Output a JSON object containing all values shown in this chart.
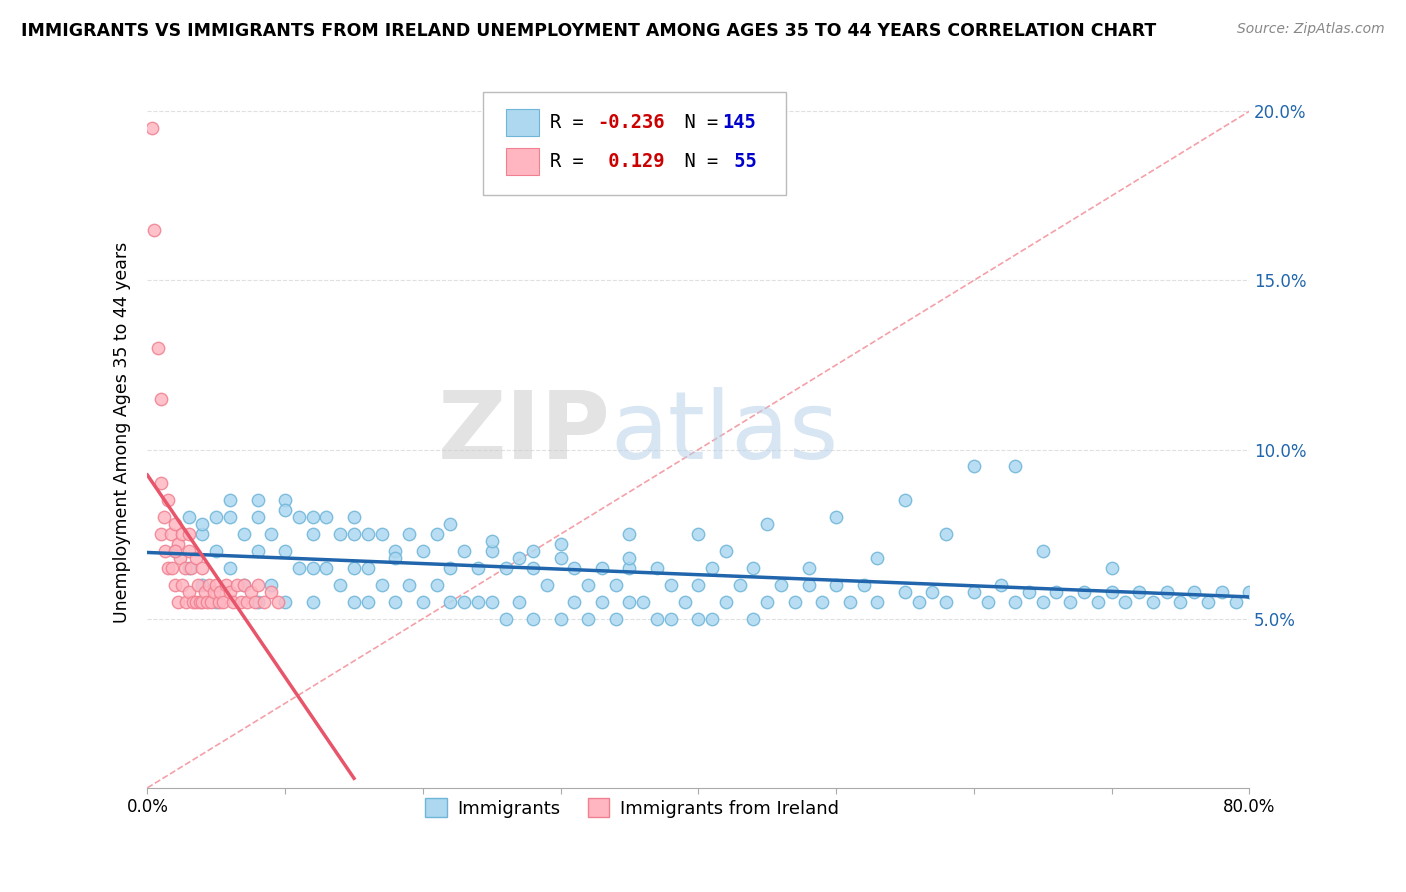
{
  "title": "IMMIGRANTS VS IMMIGRANTS FROM IRELAND UNEMPLOYMENT AMONG AGES 35 TO 44 YEARS CORRELATION CHART",
  "source": "Source: ZipAtlas.com",
  "ylabel": "Unemployment Among Ages 35 to 44 years",
  "xlim": [
    0.0,
    0.8
  ],
  "ylim": [
    0.0,
    0.21
  ],
  "xticks": [
    0.0,
    0.1,
    0.2,
    0.3,
    0.4,
    0.5,
    0.6,
    0.7,
    0.8
  ],
  "xticklabels": [
    "0.0%",
    "",
    "",
    "",
    "",
    "",
    "",
    "",
    "80.0%"
  ],
  "yticks_right": [
    0.0,
    0.05,
    0.1,
    0.15,
    0.2
  ],
  "ytick_right_labels": [
    "",
    "5.0%",
    "10.0%",
    "15.0%",
    "20.0%"
  ],
  "blue_face_color": "#ADD8F0",
  "blue_edge_color": "#6EB5D8",
  "pink_face_color": "#FFB6C1",
  "pink_edge_color": "#F08090",
  "blue_line_color": "#2166AC",
  "pink_line_color": "#E8556A",
  "diag_line_color": "#F4A0A8",
  "R_blue": -0.236,
  "N_blue": 145,
  "R_pink": 0.129,
  "N_pink": 55,
  "watermark_zip": "ZIP",
  "watermark_atlas": "atlas",
  "legend_R_color_blue": "#CC0000",
  "legend_N_color_blue": "#0000CC",
  "legend_R_color_pink": "#CC0000",
  "legend_N_color_pink": "#0000CC",
  "blue_scatter_x": [
    0.02,
    0.03,
    0.03,
    0.04,
    0.04,
    0.05,
    0.05,
    0.05,
    0.06,
    0.06,
    0.07,
    0.07,
    0.08,
    0.08,
    0.08,
    0.09,
    0.09,
    0.1,
    0.1,
    0.1,
    0.11,
    0.11,
    0.12,
    0.12,
    0.12,
    0.13,
    0.13,
    0.14,
    0.14,
    0.15,
    0.15,
    0.15,
    0.16,
    0.16,
    0.16,
    0.17,
    0.17,
    0.18,
    0.18,
    0.19,
    0.19,
    0.2,
    0.2,
    0.21,
    0.21,
    0.22,
    0.22,
    0.23,
    0.23,
    0.24,
    0.24,
    0.25,
    0.25,
    0.26,
    0.26,
    0.27,
    0.27,
    0.28,
    0.28,
    0.29,
    0.3,
    0.3,
    0.31,
    0.31,
    0.32,
    0.32,
    0.33,
    0.33,
    0.34,
    0.34,
    0.35,
    0.35,
    0.36,
    0.37,
    0.37,
    0.38,
    0.38,
    0.39,
    0.4,
    0.4,
    0.41,
    0.41,
    0.42,
    0.43,
    0.44,
    0.44,
    0.45,
    0.46,
    0.47,
    0.48,
    0.49,
    0.5,
    0.51,
    0.52,
    0.53,
    0.55,
    0.56,
    0.57,
    0.58,
    0.6,
    0.61,
    0.62,
    0.63,
    0.64,
    0.65,
    0.66,
    0.67,
    0.68,
    0.69,
    0.7,
    0.71,
    0.72,
    0.73,
    0.74,
    0.75,
    0.76,
    0.77,
    0.78,
    0.79,
    0.8,
    0.6,
    0.63,
    0.55,
    0.5,
    0.45,
    0.4,
    0.35,
    0.28,
    0.22,
    0.58,
    0.65,
    0.7,
    0.3,
    0.48,
    0.35,
    0.53,
    0.42,
    0.25,
    0.18,
    0.15,
    0.12,
    0.1,
    0.08,
    0.06,
    0.04
  ],
  "blue_scatter_y": [
    0.07,
    0.08,
    0.065,
    0.075,
    0.06,
    0.08,
    0.07,
    0.055,
    0.085,
    0.065,
    0.075,
    0.06,
    0.08,
    0.07,
    0.055,
    0.075,
    0.06,
    0.085,
    0.07,
    0.055,
    0.08,
    0.065,
    0.075,
    0.065,
    0.055,
    0.08,
    0.065,
    0.075,
    0.06,
    0.08,
    0.065,
    0.055,
    0.075,
    0.065,
    0.055,
    0.075,
    0.06,
    0.07,
    0.055,
    0.075,
    0.06,
    0.07,
    0.055,
    0.075,
    0.06,
    0.065,
    0.055,
    0.07,
    0.055,
    0.065,
    0.055,
    0.07,
    0.055,
    0.065,
    0.05,
    0.068,
    0.055,
    0.065,
    0.05,
    0.06,
    0.068,
    0.05,
    0.065,
    0.055,
    0.06,
    0.05,
    0.065,
    0.055,
    0.06,
    0.05,
    0.065,
    0.055,
    0.055,
    0.065,
    0.05,
    0.06,
    0.05,
    0.055,
    0.06,
    0.05,
    0.065,
    0.05,
    0.055,
    0.06,
    0.065,
    0.05,
    0.055,
    0.06,
    0.055,
    0.06,
    0.055,
    0.06,
    0.055,
    0.06,
    0.055,
    0.058,
    0.055,
    0.058,
    0.055,
    0.058,
    0.055,
    0.06,
    0.055,
    0.058,
    0.055,
    0.058,
    0.055,
    0.058,
    0.055,
    0.058,
    0.055,
    0.058,
    0.055,
    0.058,
    0.055,
    0.058,
    0.055,
    0.058,
    0.055,
    0.058,
    0.095,
    0.095,
    0.085,
    0.08,
    0.078,
    0.075,
    0.068,
    0.07,
    0.078,
    0.075,
    0.07,
    0.065,
    0.072,
    0.065,
    0.075,
    0.068,
    0.07,
    0.073,
    0.068,
    0.075,
    0.08,
    0.082,
    0.085,
    0.08,
    0.078
  ],
  "pink_scatter_x": [
    0.003,
    0.005,
    0.008,
    0.01,
    0.01,
    0.012,
    0.013,
    0.015,
    0.015,
    0.017,
    0.018,
    0.02,
    0.02,
    0.022,
    0.022,
    0.024,
    0.025,
    0.025,
    0.027,
    0.028,
    0.03,
    0.03,
    0.032,
    0.033,
    0.035,
    0.035,
    0.037,
    0.038,
    0.04,
    0.04,
    0.042,
    0.043,
    0.045,
    0.046,
    0.048,
    0.05,
    0.052,
    0.053,
    0.055,
    0.057,
    0.06,
    0.062,
    0.065,
    0.068,
    0.07,
    0.072,
    0.075,
    0.078,
    0.08,
    0.085,
    0.09,
    0.095,
    0.01,
    0.02,
    0.03
  ],
  "pink_scatter_y": [
    0.195,
    0.165,
    0.13,
    0.09,
    0.075,
    0.08,
    0.07,
    0.085,
    0.065,
    0.075,
    0.065,
    0.078,
    0.06,
    0.072,
    0.055,
    0.068,
    0.075,
    0.06,
    0.065,
    0.055,
    0.07,
    0.058,
    0.065,
    0.055,
    0.068,
    0.055,
    0.06,
    0.055,
    0.065,
    0.055,
    0.058,
    0.055,
    0.06,
    0.055,
    0.058,
    0.06,
    0.055,
    0.058,
    0.055,
    0.06,
    0.058,
    0.055,
    0.06,
    0.055,
    0.06,
    0.055,
    0.058,
    0.055,
    0.06,
    0.055,
    0.058,
    0.055,
    0.115,
    0.07,
    0.075
  ]
}
